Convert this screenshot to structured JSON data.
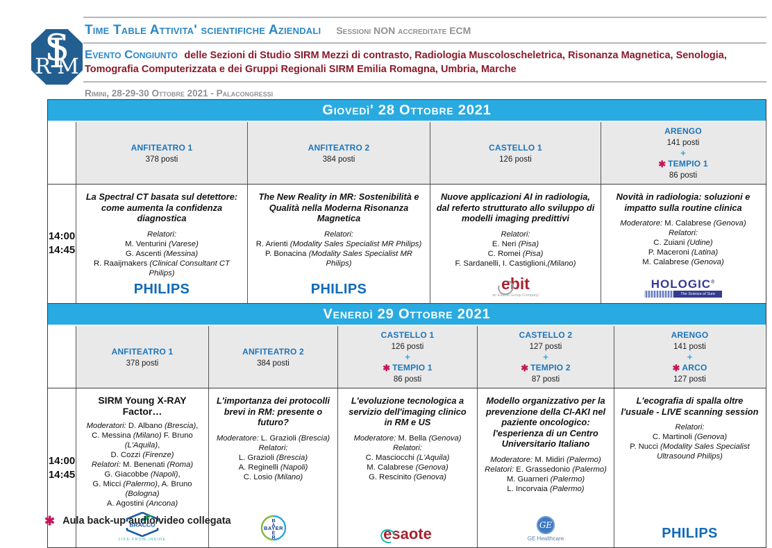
{
  "colors": {
    "band_cyan": "#29abe2",
    "heading_blue": "#2b87c8",
    "room_blue": "#1b75bc",
    "event_maroon": "#8b1a2b",
    "muted_gray": "#8f9194",
    "asterisk_red": "#c2185b",
    "philips_blue": "#0f6bb8",
    "hologic_navy": "#363b90",
    "logo_dark_red": "#a6242f",
    "bracco_blue": "#1c5ba3",
    "ge_blue": "#3f7ac2"
  },
  "icons": {
    "backup_asterisk": "✱"
  },
  "header": {
    "logo_letters": [
      "R",
      "S",
      "I",
      "M"
    ],
    "title": "Time Table Attivita' scientifiche Aziendali",
    "ecm_note": "Sessioni NON accreditate ECM",
    "event_lead": "Evento Congiunto",
    "event_rest": "delle Sezioni di Studio SIRM Mezzi di contrasto, Radiologia Muscoloscheletrica, Risonanza Magnetica, Senologia,",
    "event_line2": "Tomografia Computerizzata e dei Gruppi Regionali SIRM Emilia Romagna, Umbria, Marche",
    "venue": "Rimini, 28-29-30 Ottobre 2021 - Palacongressi"
  },
  "logos": {
    "philips": "PHILIPS",
    "ebit": "ebit",
    "ebit_tagline": "an Esaote Group Company",
    "hologic": "HOLOGIC",
    "hologic_reg": "®",
    "hologic_tagline": "The Science of Sure",
    "bracco": "BRACCO",
    "bracco_tagline": "LIFE FROM INSIDE",
    "bayer": "BAYER",
    "bayer_vertical": [
      "B",
      "A",
      "E",
      "R"
    ],
    "esaote": "esaote",
    "ge_monogram": "GE",
    "ge_label": "GE Healthcare"
  },
  "tables": [
    {
      "day_title": "Giovedì' 28 Ottobre 2021",
      "time_start": "14:00",
      "time_end": "14:45",
      "columns": [
        {
          "room": "ANFITEATRO 1",
          "seats": "378 posti",
          "session": {
            "title": "La Spectral CT basata sul detettore: come aumenta la confidenza diagnostica",
            "lines": [
              "Relatori:",
              "M. Venturini (Varese)",
              "G. Ascenti (Messina)",
              "R. Raaijmakers (Clinical Consultant CT Philips)"
            ],
            "logo": "philips"
          }
        },
        {
          "room": "ANFITEATRO 2",
          "seats": "384 posti",
          "session": {
            "title": "The New Reality in MR: Sostenibilità e Qualità nella Moderna Risonanza Magnetica",
            "lines": [
              "Relatori:",
              "R. Arienti (Modality Sales Specialist MR Philips)",
              "P. Bonacina (Modality Sales Specialist MR Philips)"
            ],
            "logo": "philips"
          }
        },
        {
          "room": "CASTELLO 1",
          "seats": "126 posti",
          "session": {
            "title": "Nuove applicazioni AI in radiologia, dal referto strutturato allo sviluppo di modelli imaging predittivi",
            "lines": [
              "Relatori:",
              "E. Neri (Pisa)",
              "C. Romei (Pisa)",
              "F. Sardanelli, I. Castiglioni,(Milano)"
            ],
            "logo": "ebit"
          }
        },
        {
          "room": "ARENGO",
          "seats": "141 posti",
          "plus": "+",
          "extra_room": "TEMPIO 1",
          "extra_seats": "86 posti",
          "session": {
            "title": "Novità in radiologia: soluzioni e impatto sulla routine clinica",
            "lines": [
              "Moderatore: M. Calabrese (Genova)",
              "Relatori:",
              "C. Zuiani (Udine)",
              "P. Maceroni (Latina)",
              "M. Calabrese (Genova)"
            ],
            "logo": "hologic"
          }
        }
      ]
    },
    {
      "day_title": "Venerdì 29 Ottobre 2021",
      "time_start": "14:00",
      "time_end": "14:45",
      "columns": [
        {
          "room": "ANFITEATRO 1",
          "seats": "378 posti",
          "session": {
            "title": "SIRM Young X-RAY Factor…",
            "lines": [
              "Moderatori: D. Albano (Brescia),",
              "C. Messina (Milano) F. Bruno (L'Aquila),",
              "D. Cozzi (Firenze)",
              "Relatori: M. Benenati (Roma)",
              "G. Giacobbe (Napoli),",
              "G. Micci (Palermo), A. Bruno (Bologna)",
              "A. Agostini (Ancona)"
            ],
            "logo": "bracco"
          }
        },
        {
          "room": "ANFITEATRO 2",
          "seats": "384 posti",
          "session": {
            "title": "L'importanza dei protocolli brevi in RM: presente o futuro?",
            "lines": [
              "Moderatore: L. Grazioli (Brescia)",
              "Relatori:",
              "L. Grazioli (Brescia)",
              "A. Reginelli (Napoli)",
              "C. Losio (Milano)"
            ],
            "logo": "bayer"
          }
        },
        {
          "room": "CASTELLO 1",
          "seats": "126 posti",
          "plus": "+",
          "extra_room": "TEMPIO 1",
          "extra_seats": "86 posti",
          "session": {
            "title": "L'evoluzione tecnologica a servizio dell'imaging clinico in RM e US",
            "lines": [
              "Moderatore: M. Bella (Genova)",
              "Relatori:",
              "C. Masciocchi (L'Aquila)",
              "M. Calabrese (Genova)",
              "G. Rescinito (Genova)"
            ],
            "logo": "esaote"
          }
        },
        {
          "room": "CASTELLO 2",
          "seats": "127 posti",
          "plus": "+",
          "extra_room": "TEMPIO 2",
          "extra_seats": "87 posti",
          "session": {
            "title": "Modello organizzativo per la prevenzione della CI-AKI nel paziente oncologico: l'esperienza di un Centro Universitario Italiano",
            "lines": [
              "Moderatore: M. Midiri (Palermo)",
              "Relatori: E. Grassedonio (Palermo)",
              "M. Guarneri (Palermo)",
              "L. Incorvaia (Palermo)"
            ],
            "logo": "ge"
          }
        },
        {
          "room": "ARENGO",
          "seats": "141 posti",
          "plus": "+",
          "extra_room": "ARCO",
          "extra_seats": "127 posti",
          "session": {
            "title": "L'ecografia di spalla oltre l'usuale - LIVE scanning session",
            "lines": [
              "Relatori:",
              "C. Martinoli (Genova)",
              "P. Nucci (Modality Sales Specialist Ultrasound Philips)"
            ],
            "logo": "philips"
          }
        }
      ]
    }
  ],
  "footnote": {
    "text": "Aula back-up audio/video collegata"
  }
}
